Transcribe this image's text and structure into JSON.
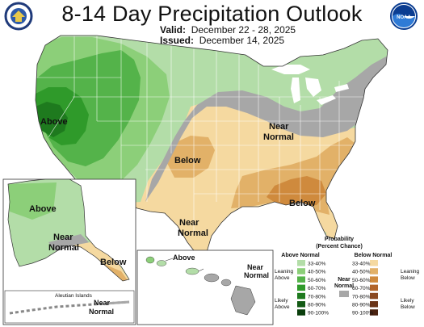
{
  "title": "8-14 Day Precipitation Outlook",
  "valid_label": "Valid:",
  "valid_dates": "December 22 - 28, 2025",
  "issued_label": "Issued:",
  "issued_date": "December 14, 2025",
  "logos": {
    "left": "doc-seal-logo",
    "right": "noaa-logo",
    "right_text": "NOAA"
  },
  "colors": {
    "above_33_40": "#b3dda8",
    "above_40_50": "#8ccf79",
    "above_50_60": "#54b34a",
    "above_60_70": "#2f9a2a",
    "above_70_80": "#1e7a1e",
    "above_80_90": "#135a15",
    "above_90_100": "#0a3e0c",
    "below_33_40": "#f5d9a0",
    "below_40_50": "#e2b168",
    "below_50_60": "#cf8a3d",
    "below_60_70": "#b2652a",
    "below_70_80": "#8b4a22",
    "below_80_90": "#6a3418",
    "below_90_100": "#4a2210",
    "near_normal": "#a7a7a7"
  },
  "map_labels": {
    "above_west": "Above",
    "below_plains": "Below",
    "below_southeast": "Below",
    "near_normal_ne_line1": "Near",
    "near_normal_ne_line2": "Normal",
    "near_normal_tx_line1": "Near",
    "near_normal_tx_line2": "Normal",
    "alaska_above": "Above",
    "alaska_near_line1": "Near",
    "alaska_near_line2": "Normal",
    "alaska_below": "Below",
    "aleutian": "Aleutian Islands",
    "aleutian_near_line1": "Near",
    "aleutian_near_line2": "Normal",
    "hawaii_above": "Above",
    "hawaii_near_line1": "Near",
    "hawaii_near_line2": "Normal"
  },
  "legend": {
    "title_line1": "Probability",
    "title_line2": "(Percent Chance)",
    "above_header": "Above Normal",
    "below_header": "Below Normal",
    "near_header_line1": "Near",
    "near_header_line2": "Normal",
    "ranges": [
      "33-40%",
      "40-50%",
      "50-60%",
      "60-70%",
      "70-80%",
      "80-90%",
      "90-100%"
    ],
    "leaning_above_line1": "Leaning",
    "leaning_above_line2": "Above",
    "likely_above_line1": "Likely",
    "likely_above_line2": "Above",
    "leaning_below_line1": "Leaning",
    "leaning_below_line2": "Below",
    "likely_below_line1": "Likely",
    "likely_below_line2": "Below"
  }
}
